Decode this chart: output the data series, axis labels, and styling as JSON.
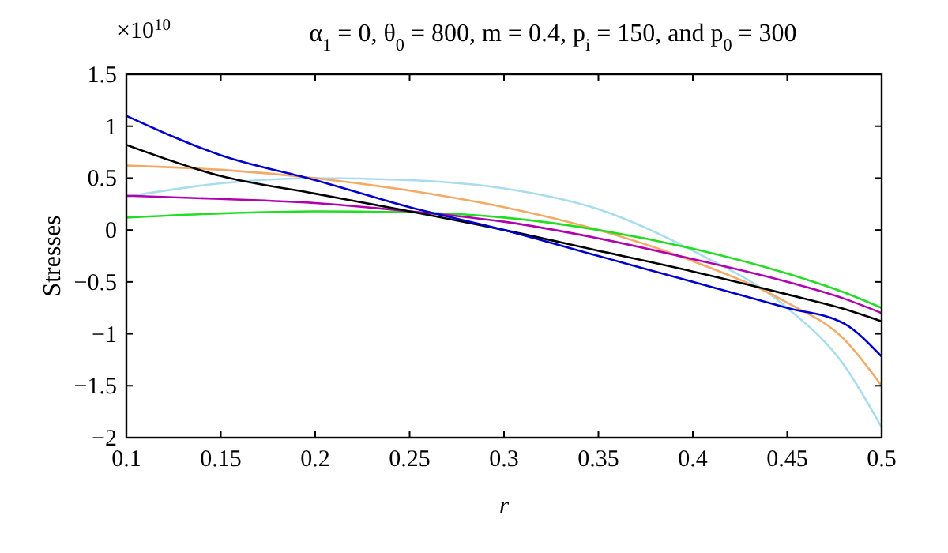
{
  "chart_data": {
    "type": "line",
    "title": "α$_{1}$ = 0, θ$_{0}$ = 800, m = 0.4, p$_{i}$ = 150, and p$_{0}$ = 300",
    "xlabel": "r",
    "ylabel": "Stresses",
    "annotations": [
      "×10$^{10}$"
    ],
    "x": [
      0.1,
      0.15,
      0.2,
      0.25,
      0.3,
      0.35,
      0.4,
      0.45,
      0.48,
      0.5
    ],
    "xlim": [
      0.1,
      0.5
    ],
    "xticks": [
      0.1,
      0.15,
      0.2,
      0.25,
      0.3,
      0.35,
      0.4,
      0.45,
      0.5
    ],
    "ylim": [
      -2,
      1.5
    ],
    "yticks": [
      {
        "value": -2,
        "label": "−2"
      },
      {
        "value": -1.5,
        "label": "−1.5"
      },
      {
        "value": -1,
        "label": "−1"
      },
      {
        "value": -0.5,
        "label": "−0.5"
      },
      0,
      0.5,
      1,
      1.5
    ],
    "grid": false,
    "line_style": "solid",
    "series": [
      {
        "color": "#a8dcee",
        "values": [
          0.32,
          0.45,
          0.5,
          0.48,
          0.4,
          0.2,
          -0.2,
          -0.75,
          -1.3,
          -1.9
        ]
      },
      {
        "color": "#f4aa66",
        "values": [
          0.62,
          0.58,
          0.5,
          0.38,
          0.22,
          0.0,
          -0.3,
          -0.7,
          -1.05,
          -1.5
        ]
      },
      {
        "color": "#22dd22",
        "values": [
          0.12,
          0.16,
          0.18,
          0.17,
          0.12,
          0.0,
          -0.18,
          -0.42,
          -0.6,
          -0.75
        ]
      },
      {
        "color": "#b000b0",
        "values": [
          0.33,
          0.3,
          0.26,
          0.18,
          0.08,
          -0.08,
          -0.28,
          -0.5,
          -0.66,
          -0.8
        ]
      },
      {
        "color": "#000000",
        "values": [
          0.82,
          0.52,
          0.35,
          0.18,
          0.0,
          -0.2,
          -0.4,
          -0.62,
          -0.76,
          -0.88
        ]
      },
      {
        "color": "#0000cc",
        "values": [
          1.1,
          0.72,
          0.48,
          0.22,
          0.0,
          -0.25,
          -0.5,
          -0.75,
          -0.9,
          -1.22
        ]
      }
    ]
  }
}
